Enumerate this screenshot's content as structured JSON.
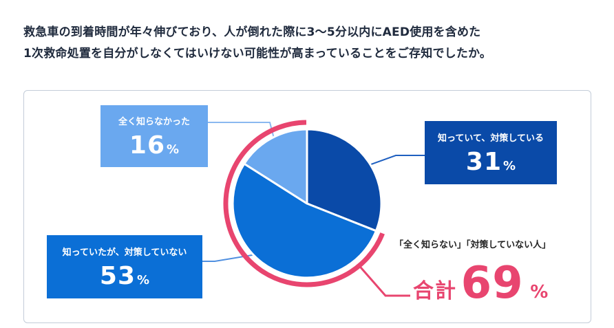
{
  "question": {
    "line1": "救急車の到着時間が年々伸びており、人が倒れた際に3〜5分以内にAED使用を含めた",
    "line2": "1次救命処置を自分がしなくてはいけない可能性が高まっていることをご存知でしたか。"
  },
  "chart_data": {
    "type": "pie",
    "title": "",
    "slices": [
      {
        "label": "知っていて、対策している",
        "value": 31,
        "color": "#0a4aa8"
      },
      {
        "label": "知っていたが、対策していない",
        "value": 53,
        "color": "#0b6fd6"
      },
      {
        "label": "全く知らなかった",
        "value": 16,
        "color": "#6aa8ef"
      }
    ],
    "unit": "%",
    "highlight": {
      "caption": "「全く知らない」「対策していない人」",
      "label": "合計",
      "value": "69",
      "unit": "%",
      "color": "#e8456f"
    }
  },
  "callouts": {
    "none": {
      "label": "全く知らなかった",
      "value": "16",
      "unit": "%"
    },
    "yes": {
      "label": "知っていて、対策している",
      "value": "31",
      "unit": "%"
    },
    "no": {
      "label": "知っていたが、対策していない",
      "value": "53",
      "unit": "%"
    }
  }
}
